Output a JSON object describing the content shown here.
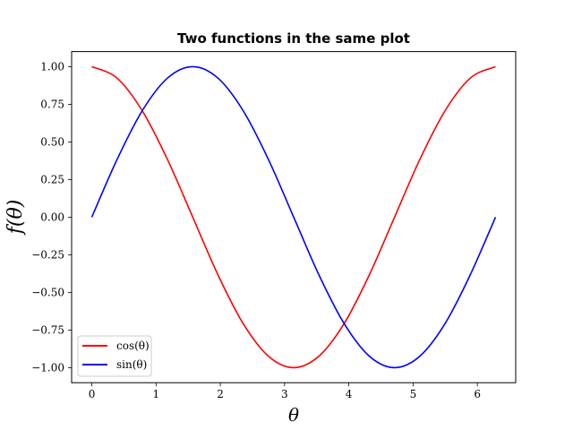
{
  "chart_data": {
    "type": "line",
    "title": "Two functions in the same plot",
    "xlabel": "θ",
    "ylabel": "f(θ)",
    "xlim": [
      -0.314,
      6.597
    ],
    "ylim": [
      -1.1,
      1.1
    ],
    "xticks": [
      0,
      1,
      2,
      3,
      4,
      5,
      6
    ],
    "xtick_labels": [
      "0",
      "1",
      "2",
      "3",
      "4",
      "5",
      "6"
    ],
    "yticks": [
      -1.0,
      -0.75,
      -0.5,
      -0.25,
      0.0,
      0.25,
      0.5,
      0.75,
      1.0
    ],
    "ytick_labels": [
      "−1.00",
      "−0.75",
      "−0.50",
      "−0.25",
      "0.00",
      "0.25",
      "0.50",
      "0.75",
      "1.00"
    ],
    "grid": false,
    "legend_position": "bottom-left",
    "series": [
      {
        "name": "cos(θ)",
        "color": "#ff0000",
        "x": [
          0,
          0.393,
          0.785,
          1.178,
          1.571,
          1.963,
          2.356,
          2.749,
          3.142,
          3.534,
          3.927,
          4.32,
          4.712,
          5.105,
          5.498,
          5.89,
          6.283
        ],
        "y": [
          1.0,
          0.924,
          0.707,
          0.383,
          0.0,
          -0.383,
          -0.707,
          -0.924,
          -1.0,
          -0.924,
          -0.707,
          -0.383,
          0.0,
          0.383,
          0.707,
          0.924,
          1.0
        ]
      },
      {
        "name": "sin(θ)",
        "color": "#0000ff",
        "x": [
          0,
          0.393,
          0.785,
          1.178,
          1.571,
          1.963,
          2.356,
          2.749,
          3.142,
          3.534,
          3.927,
          4.32,
          4.712,
          5.105,
          5.498,
          5.89,
          6.283
        ],
        "y": [
          0.0,
          0.383,
          0.707,
          0.924,
          1.0,
          0.924,
          0.707,
          0.383,
          0.0,
          -0.383,
          -0.707,
          -0.924,
          -1.0,
          -0.924,
          -0.707,
          -0.383,
          0.0
        ]
      }
    ]
  }
}
